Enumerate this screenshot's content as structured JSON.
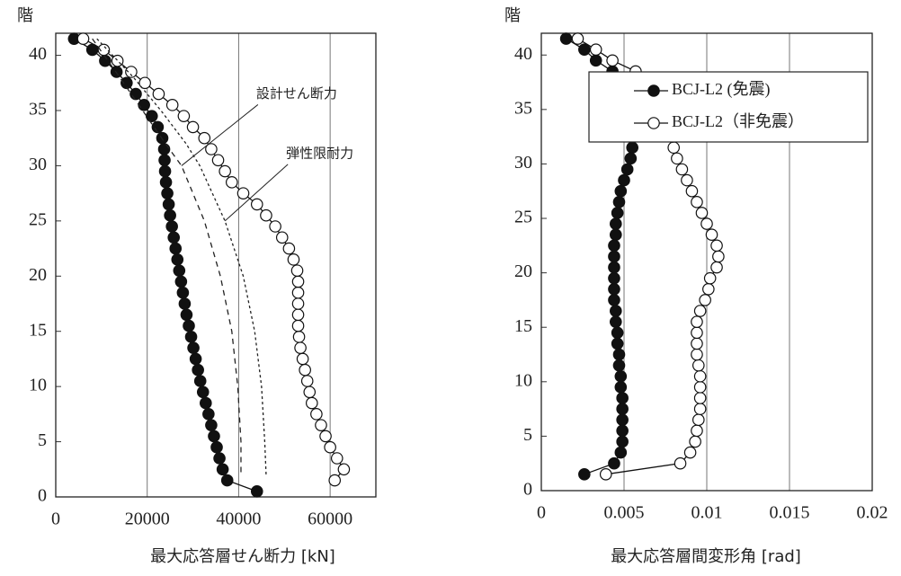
{
  "chart_data": [
    {
      "type": "line",
      "y_label": "階",
      "x_label": "最大応答層せん断力  [kN]",
      "xlim": [
        0,
        70000
      ],
      "xticks": [
        0,
        20000,
        40000,
        60000
      ],
      "ylim": [
        0,
        42
      ],
      "yticks": [
        0,
        5,
        10,
        15,
        20,
        25,
        30,
        35,
        40
      ],
      "grid": "x",
      "series": [
        {
          "color": "#111",
          "marker": "filled",
          "y": [
            0.5,
            1.5,
            2.5,
            3.5,
            4.5,
            5.5,
            6.5,
            7.5,
            8.5,
            9.5,
            10.5,
            11.5,
            12.5,
            13.5,
            14.5,
            15.5,
            16.5,
            17.5,
            18.5,
            19.5,
            20.5,
            21.5,
            22.5,
            23.5,
            24.5,
            25.5,
            26.5,
            27.5,
            28.5,
            29.5,
            30.5,
            31.5,
            32.5,
            33.5,
            34.5,
            35.5,
            36.5,
            37.5,
            38.5,
            39.5,
            40.5,
            41.5
          ],
          "x": [
            44000,
            37500,
            36500,
            35800,
            35200,
            34600,
            34000,
            33400,
            32800,
            32200,
            31600,
            31100,
            30600,
            30100,
            29600,
            29100,
            28600,
            28200,
            27800,
            27400,
            27000,
            26600,
            26200,
            25800,
            25400,
            25000,
            24700,
            24400,
            24100,
            23900,
            23800,
            23700,
            23300,
            22300,
            21000,
            19300,
            17500,
            15500,
            13300,
            10800,
            8000,
            4000
          ]
        },
        {
          "color": "#111",
          "marker": "open",
          "y": [
            1.5,
            2.5,
            3.5,
            4.5,
            5.5,
            6.5,
            7.5,
            8.5,
            9.5,
            10.5,
            11.5,
            12.5,
            13.5,
            14.5,
            15.5,
            16.5,
            17.5,
            18.5,
            19.5,
            20.5,
            21.5,
            22.5,
            23.5,
            24.5,
            25.5,
            26.5,
            27.5,
            28.5,
            29.5,
            30.5,
            31.5,
            32.5,
            33.5,
            34.5,
            35.5,
            36.5,
            37.5,
            38.5,
            39.5,
            40.5,
            41.5
          ],
          "x": [
            61000,
            63000,
            61500,
            60000,
            59000,
            58000,
            57000,
            56000,
            55500,
            55000,
            54500,
            54000,
            53500,
            53200,
            53000,
            53000,
            53000,
            53000,
            53000,
            52800,
            52000,
            51000,
            49500,
            48000,
            46000,
            44000,
            41000,
            38500,
            37000,
            35500,
            34000,
            32500,
            30000,
            28000,
            25500,
            22500,
            19500,
            16500,
            13500,
            10500,
            6000
          ]
        },
        {
          "name": "設計せん断力",
          "color": "#222",
          "dash": "dashed",
          "y": [
            41.5,
            38,
            35,
            32,
            30,
            25,
            20,
            15,
            10,
            5,
            2
          ],
          "x": [
            8000,
            14000,
            19000,
            24000,
            27500,
            32500,
            36000,
            38500,
            39800,
            40500,
            40500
          ]
        },
        {
          "name": "弾性限耐力",
          "color": "#222",
          "dash": "dotted",
          "y": [
            41.5,
            38,
            35,
            32,
            30,
            25,
            20,
            15,
            10,
            5,
            2
          ],
          "x": [
            9000,
            17000,
            23000,
            28500,
            31500,
            37000,
            41000,
            43500,
            45000,
            45700,
            46000
          ]
        }
      ]
    },
    {
      "type": "line",
      "y_label": "階",
      "x_label": "最大応答層間変形角 [rad]",
      "xlim": [
        0,
        0.02
      ],
      "xticks": [
        0,
        0.005,
        0.01,
        0.015,
        0.02
      ],
      "ylim": [
        0,
        42
      ],
      "yticks": [
        0,
        5,
        10,
        15,
        20,
        25,
        30,
        35,
        40
      ],
      "grid": "x",
      "legend": "top-right",
      "series": [
        {
          "name": "BCJ-L2 (免震)",
          "color": "#111",
          "marker": "filled",
          "y": [
            1.5,
            2.5,
            3.5,
            4.5,
            5.5,
            6.5,
            7.5,
            8.5,
            9.5,
            10.5,
            11.5,
            12.5,
            13.5,
            14.5,
            15.5,
            16.5,
            17.5,
            18.5,
            19.5,
            20.5,
            21.5,
            22.5,
            23.5,
            24.5,
            25.5,
            26.5,
            27.5,
            28.5,
            29.5,
            30.5,
            31.5,
            32.5,
            33.5,
            34.5,
            35.5,
            36.5,
            37.5,
            38.5,
            39.5,
            40.5,
            41.5
          ],
          "x": [
            0.0026,
            0.0044,
            0.0048,
            0.0049,
            0.0049,
            0.0049,
            0.0049,
            0.0049,
            0.0048,
            0.0048,
            0.0047,
            0.0047,
            0.0046,
            0.0046,
            0.0045,
            0.0045,
            0.0044,
            0.0044,
            0.0044,
            0.0044,
            0.0044,
            0.0044,
            0.0045,
            0.0045,
            0.0046,
            0.0047,
            0.0048,
            0.005,
            0.0052,
            0.0054,
            0.0055,
            0.0055,
            0.0055,
            0.0054,
            0.0053,
            0.0051,
            0.0048,
            0.0043,
            0.0033,
            0.0026,
            0.0015
          ]
        },
        {
          "name": "BCJ-L2（非免震）",
          "color": "#111",
          "marker": "open",
          "y": [
            1.5,
            2.5,
            3.5,
            4.5,
            5.5,
            6.5,
            7.5,
            8.5,
            9.5,
            10.5,
            11.5,
            12.5,
            13.5,
            14.5,
            15.5,
            16.5,
            17.5,
            18.5,
            19.5,
            20.5,
            21.5,
            22.5,
            23.5,
            24.5,
            25.5,
            26.5,
            27.5,
            28.5,
            29.5,
            30.5,
            31.5,
            32.5,
            33.5,
            34.5,
            35.5,
            36.5,
            37.5,
            38.5,
            39.5,
            40.5,
            41.5
          ],
          "x": [
            0.0039,
            0.0084,
            0.009,
            0.0093,
            0.0094,
            0.0095,
            0.0096,
            0.0096,
            0.0096,
            0.0096,
            0.0095,
            0.0094,
            0.0094,
            0.0094,
            0.0094,
            0.0096,
            0.0099,
            0.0101,
            0.0102,
            0.0106,
            0.0107,
            0.0106,
            0.0103,
            0.01,
            0.0097,
            0.0094,
            0.0091,
            0.0088,
            0.0085,
            0.0082,
            0.008,
            0.0079,
            0.0078,
            0.0077,
            0.0075,
            0.0071,
            0.0066,
            0.0057,
            0.0043,
            0.0033,
            0.0022
          ]
        }
      ]
    }
  ]
}
